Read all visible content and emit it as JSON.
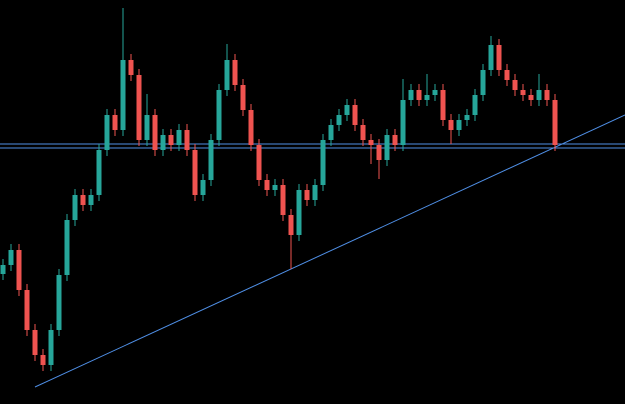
{
  "chart_data": {
    "type": "candlestick",
    "up_color": "#26a69a",
    "down_color": "#ef5350",
    "line_color": "#4f8fe6",
    "background": "#000000",
    "xlim": [
      -0.375,
      77.75
    ],
    "ylim": [
      0,
      404
    ],
    "x": [
      0,
      1,
      2,
      3,
      4,
      5,
      6,
      7,
      8,
      9,
      10,
      11,
      12,
      13,
      14,
      15,
      16,
      17,
      18,
      19,
      20,
      21,
      22,
      23,
      24,
      25,
      26,
      27,
      28,
      29,
      30,
      31,
      32,
      33,
      34,
      35,
      36,
      37,
      38,
      39,
      40,
      41,
      42,
      43,
      44,
      45,
      46,
      47,
      48,
      49,
      50,
      51,
      52,
      53,
      54,
      55,
      56,
      57,
      58,
      59,
      60,
      61,
      62,
      63,
      64,
      65,
      66,
      67,
      68,
      69
    ],
    "open": [
      130,
      139,
      154,
      114,
      74,
      49,
      39,
      74,
      129,
      184,
      209,
      199,
      209,
      254,
      289,
      274,
      344,
      329,
      264,
      289,
      254,
      269,
      259,
      274,
      254,
      209,
      224,
      264,
      314,
      344,
      319,
      294,
      259,
      224,
      214,
      219,
      189,
      169,
      214,
      204,
      219,
      264,
      279,
      289,
      299,
      279,
      264,
      259,
      244,
      269,
      259,
      304,
      314,
      304,
      309,
      314,
      284,
      274,
      284,
      289,
      309,
      334,
      359,
      334,
      324,
      314,
      309,
      304,
      314,
      304
    ],
    "high": [
      145,
      160,
      160,
      120,
      80,
      55,
      80,
      135,
      190,
      215,
      215,
      215,
      260,
      295,
      295,
      396,
      350,
      335,
      310,
      295,
      275,
      275,
      280,
      280,
      260,
      230,
      270,
      320,
      360,
      350,
      325,
      300,
      265,
      230,
      225,
      225,
      195,
      220,
      220,
      225,
      270,
      285,
      295,
      305,
      305,
      285,
      270,
      265,
      275,
      275,
      325,
      320,
      320,
      330,
      320,
      320,
      290,
      290,
      295,
      315,
      340,
      368,
      365,
      340,
      330,
      320,
      315,
      330,
      320,
      310
    ],
    "low": [
      124,
      133,
      108,
      68,
      43,
      33,
      33,
      68,
      123,
      178,
      193,
      193,
      203,
      248,
      268,
      268,
      323,
      258,
      258,
      248,
      248,
      253,
      253,
      248,
      203,
      203,
      218,
      258,
      308,
      313,
      288,
      253,
      218,
      208,
      208,
      183,
      135,
      163,
      198,
      198,
      213,
      258,
      273,
      283,
      273,
      258,
      240,
      225,
      238,
      253,
      253,
      298,
      298,
      298,
      303,
      278,
      260,
      268,
      278,
      283,
      303,
      328,
      328,
      318,
      308,
      303,
      298,
      298,
      298,
      253
    ],
    "close": [
      139,
      154,
      114,
      74,
      49,
      39,
      74,
      129,
      184,
      209,
      199,
      209,
      254,
      289,
      274,
      344,
      329,
      264,
      289,
      254,
      269,
      259,
      274,
      254,
      209,
      224,
      264,
      314,
      344,
      319,
      294,
      259,
      224,
      214,
      219,
      189,
      169,
      214,
      204,
      219,
      264,
      279,
      289,
      299,
      279,
      264,
      259,
      244,
      269,
      259,
      304,
      314,
      304,
      309,
      314,
      284,
      274,
      284,
      289,
      309,
      334,
      359,
      334,
      324,
      314,
      309,
      304,
      314,
      304,
      259
    ],
    "hlines": [
      260,
      256
    ],
    "trendline": {
      "x": [
        4,
        77.75
      ],
      "y": [
        17,
        289
      ]
    }
  }
}
